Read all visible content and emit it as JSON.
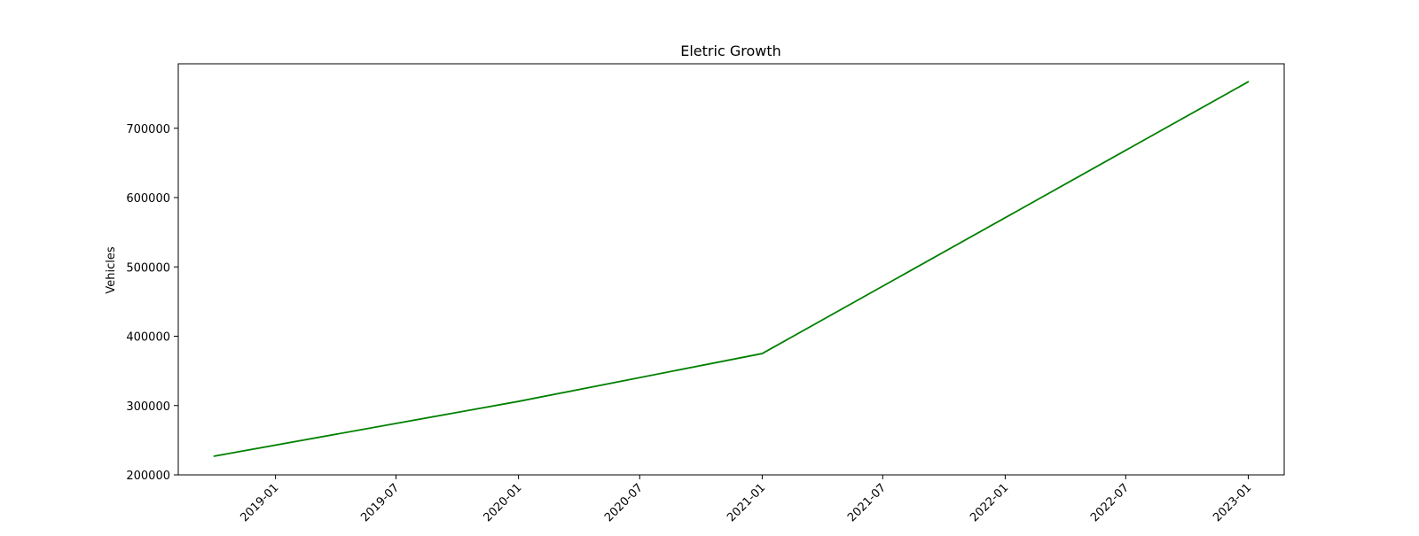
{
  "chart_data": {
    "type": "line",
    "title": "Eletric Growth",
    "xlabel": "",
    "ylabel": "Vehicles",
    "x_tick_labels": [
      "2019-01",
      "2019-07",
      "2020-01",
      "2020-07",
      "2021-01",
      "2021-07",
      "2022-01",
      "2022-07",
      "2023-01"
    ],
    "y_tick_labels": [
      "200000",
      "300000",
      "400000",
      "500000",
      "600000",
      "700000"
    ],
    "xlim": [
      "2018-08-08",
      "2023-02-24"
    ],
    "ylim": [
      200000,
      793000
    ],
    "grid": false,
    "legend": "none",
    "series": [
      {
        "color": "#008000",
        "points": [
          {
            "x": "2018-10-01",
            "y": 227000
          },
          {
            "x": "2020-01-01",
            "y": 306000
          },
          {
            "x": "2021-01-01",
            "y": 375000
          },
          {
            "x": "2023-01-01",
            "y": 767000
          }
        ]
      }
    ]
  }
}
